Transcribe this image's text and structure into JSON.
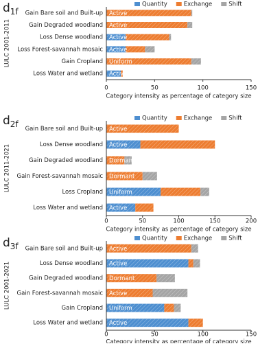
{
  "chart_data": [
    {
      "type": "stacked_barh",
      "panel_label": "d",
      "panel_sub": "1f",
      "y_label": "LULC 2001-2011",
      "x_label": "Category intensity as percentage of category size",
      "categories": [
        "Gain Bare soil and Built-up",
        "Gain Degraded woodland",
        "Loss Dense woodland",
        "Loss Forest-savannah mosaic",
        "Gain Cropland",
        "Loss Water and wetland"
      ],
      "intensity_labels": [
        "Active",
        "Active",
        "Active",
        "Active",
        "Uniform",
        "Active"
      ],
      "series": [
        {
          "name": "Quantity",
          "color": "#4e8fd0",
          "values": [
            0,
            0,
            20,
            20,
            0,
            15
          ]
        },
        {
          "name": "Exchange",
          "color": "#ed7d31",
          "values": [
            88,
            84,
            45,
            20,
            88,
            2
          ]
        },
        {
          "name": "Shift",
          "color": "#a5a5a5",
          "values": [
            1,
            5,
            2,
            10,
            10,
            0
          ]
        }
      ],
      "xlim": [
        0,
        150
      ],
      "xticks": [
        0,
        50,
        100,
        150
      ]
    },
    {
      "type": "stacked_barh",
      "panel_label": "d",
      "panel_sub": "2f",
      "y_label": "LULC 2011-2021",
      "x_label": "Category intensity as percentage of category size",
      "categories": [
        "Gain Bare soil and Built-up",
        "Loss Dense woodland",
        "Gain Degraded woodland",
        "Gain Forest-savannah mosaic",
        "Loss Cropland",
        "Loss Water and wetland"
      ],
      "intensity_labels": [
        "Active",
        "Active",
        "Dormant",
        "Dormant",
        "Uniform",
        "Active"
      ],
      "series": [
        {
          "name": "Quantity",
          "color": "#4e8fd0",
          "values": [
            0,
            47,
            0,
            0,
            75,
            40
          ]
        },
        {
          "name": "Exchange",
          "color": "#ed7d31",
          "values": [
            100,
            103,
            25,
            50,
            55,
            25
          ]
        },
        {
          "name": "Shift",
          "color": "#a5a5a5",
          "values": [
            0,
            0,
            10,
            20,
            12,
            0
          ]
        }
      ],
      "xlim": [
        0,
        200
      ],
      "xticks": [
        0,
        50,
        100,
        150,
        200
      ]
    },
    {
      "type": "stacked_barh",
      "panel_label": "d",
      "panel_sub": "3f",
      "y_label": "LULC 2001-2021",
      "x_label": "Category intensity as percentage of category size",
      "categories": [
        "Gain Bare soil and Built-up",
        "Loss Dense woodland",
        "Gain Degraded woodland",
        "Gain Forest-savannah mosaic",
        "Gain Cropland",
        "Loss Water and wetland"
      ],
      "intensity_labels": [
        "Active",
        "Active",
        "Dormant",
        "Active",
        "Uniform",
        "Active"
      ],
      "series": [
        {
          "name": "Quantity",
          "color": "#4e8fd0",
          "values": [
            0,
            85,
            0,
            0,
            60,
            85
          ]
        },
        {
          "name": "Exchange",
          "color": "#ed7d31",
          "values": [
            88,
            5,
            52,
            48,
            10,
            15
          ]
        },
        {
          "name": "Shift",
          "color": "#a5a5a5",
          "values": [
            7,
            7,
            19,
            36,
            7,
            0
          ]
        }
      ],
      "xlim": [
        0,
        150
      ],
      "xticks": [
        0,
        50,
        100,
        150
      ]
    }
  ]
}
